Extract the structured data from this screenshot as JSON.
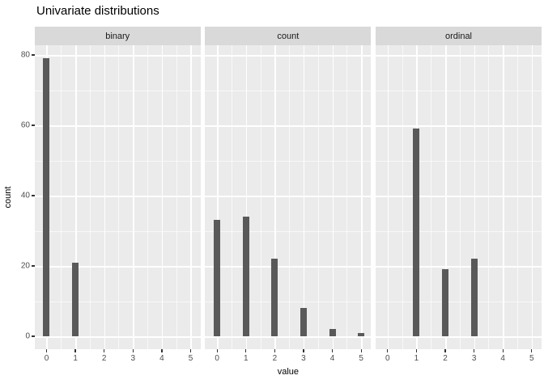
{
  "chart_data": {
    "type": "bar",
    "title": "Univariate distributions",
    "xlabel": "value",
    "ylabel": "count",
    "facets": [
      {
        "label": "binary",
        "x": [
          0,
          1
        ],
        "counts": [
          79,
          21
        ]
      },
      {
        "label": "count",
        "x": [
          0,
          1,
          2,
          3,
          4,
          5
        ],
        "counts": [
          33,
          34,
          22,
          8,
          2,
          1
        ]
      },
      {
        "label": "ordinal",
        "x": [
          1,
          2,
          3
        ],
        "counts": [
          59,
          19,
          22
        ]
      }
    ],
    "x_ticks": [
      0,
      1,
      2,
      3,
      4,
      5
    ],
    "y_ticks": [
      0,
      20,
      40,
      60,
      80
    ],
    "y_minor_ticks": [
      10,
      30,
      50,
      70
    ],
    "x_minor_ticks": [
      0.5,
      1.5,
      2.5,
      3.5,
      4.5
    ],
    "ylim": [
      0,
      83
    ],
    "grid": true,
    "legend": "none",
    "colors": {
      "bar": "#595959",
      "panel_bg": "#EBEBEB",
      "strip_bg": "#D9D9D9",
      "grid": "#FFFFFF",
      "tick_mark": "#333333",
      "axis_text": "#4D4D4D",
      "strip_text": "#1A1A1A",
      "title_text": "#000000"
    }
  }
}
